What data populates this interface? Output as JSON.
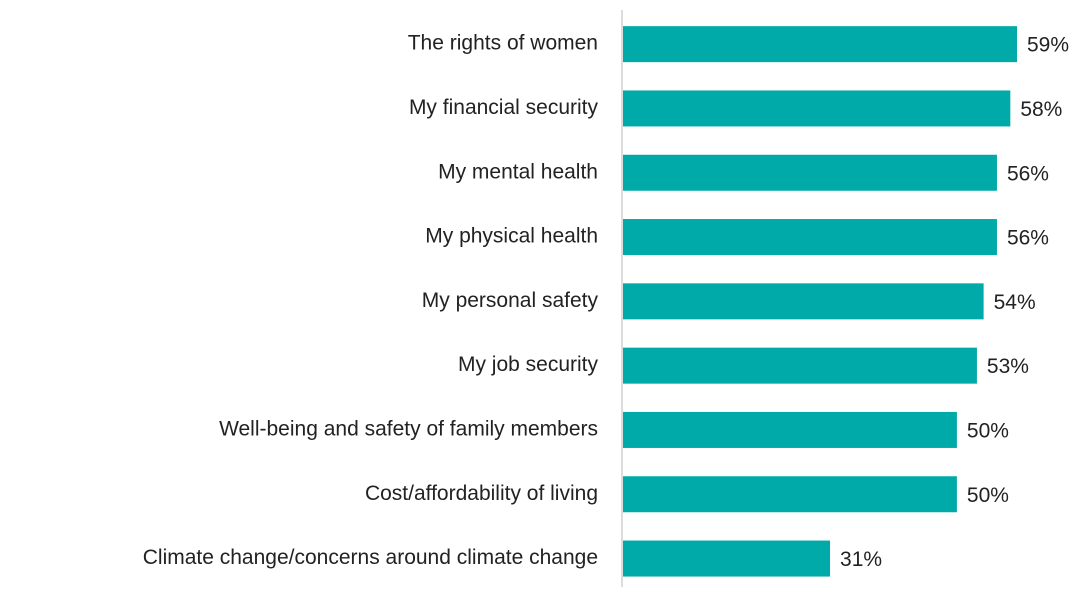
{
  "chart_data": {
    "type": "hbar",
    "categories": [
      "The rights of women",
      "My financial security",
      "My mental health",
      "My physical health",
      "My personal safety",
      "My job security",
      "Well-being and safety of family members",
      "Cost/affordability of living",
      "Climate change/concerns around climate change"
    ],
    "values": [
      59,
      58,
      56,
      56,
      54,
      53,
      50,
      50,
      31
    ],
    "value_labels": [
      "59%",
      "58%",
      "56%",
      "56%",
      "54%",
      "53%",
      "50%",
      "50%",
      "31%"
    ],
    "color": "#00aaa8"
  }
}
